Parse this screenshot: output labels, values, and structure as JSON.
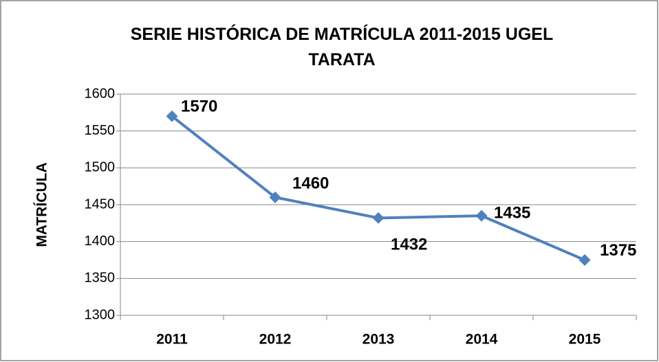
{
  "chart_data": {
    "type": "line",
    "title": "SERIE HISTÓRICA DE MATRÍCULA 2011-2015 UGEL TARATA",
    "y_label": "MATRÍCULA",
    "categories": [
      "2011",
      "2012",
      "2013",
      "2014",
      "2015"
    ],
    "series": [
      {
        "name": "MATRÍCULA",
        "color": "#4f81bd",
        "values": [
          1570,
          1460,
          1432,
          1435,
          1375
        ]
      }
    ],
    "ylim": [
      1300,
      1600
    ],
    "yticks": [
      1300,
      1350,
      1400,
      1450,
      1500,
      1550,
      1600
    ],
    "grid": true
  }
}
